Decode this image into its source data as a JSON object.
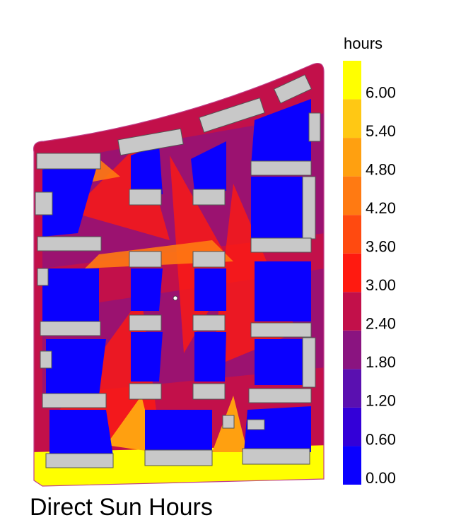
{
  "chart_data": {
    "type": "colorbar",
    "title": "Direct Sun Hours",
    "legend_title": "hours",
    "ylim": [
      0,
      6.6
    ],
    "yticks": [
      {
        "value": 0,
        "label": "0.00"
      },
      {
        "value": 0.6,
        "label": "0.60"
      },
      {
        "value": 1.2,
        "label": "1.20"
      },
      {
        "value": 1.8,
        "label": "1.80"
      },
      {
        "value": 2.4,
        "label": "2.40"
      },
      {
        "value": 3,
        "label": "3.00"
      },
      {
        "value": 3.6,
        "label": "3.60"
      },
      {
        "value": 4.2,
        "label": "4.20"
      },
      {
        "value": 4.8,
        "label": "4.80"
      },
      {
        "value": 5.4,
        "label": "5.40"
      },
      {
        "value": 6,
        "label": "6.00"
      }
    ],
    "colors": [
      "#0a00ff",
      "#3300d8",
      "#5a10b0",
      "#8a1480",
      "#c2104a",
      "#ff1a10",
      "#ff4a10",
      "#ff7a12",
      "#ffa010",
      "#ffc814",
      "#ffff00"
    ]
  }
}
